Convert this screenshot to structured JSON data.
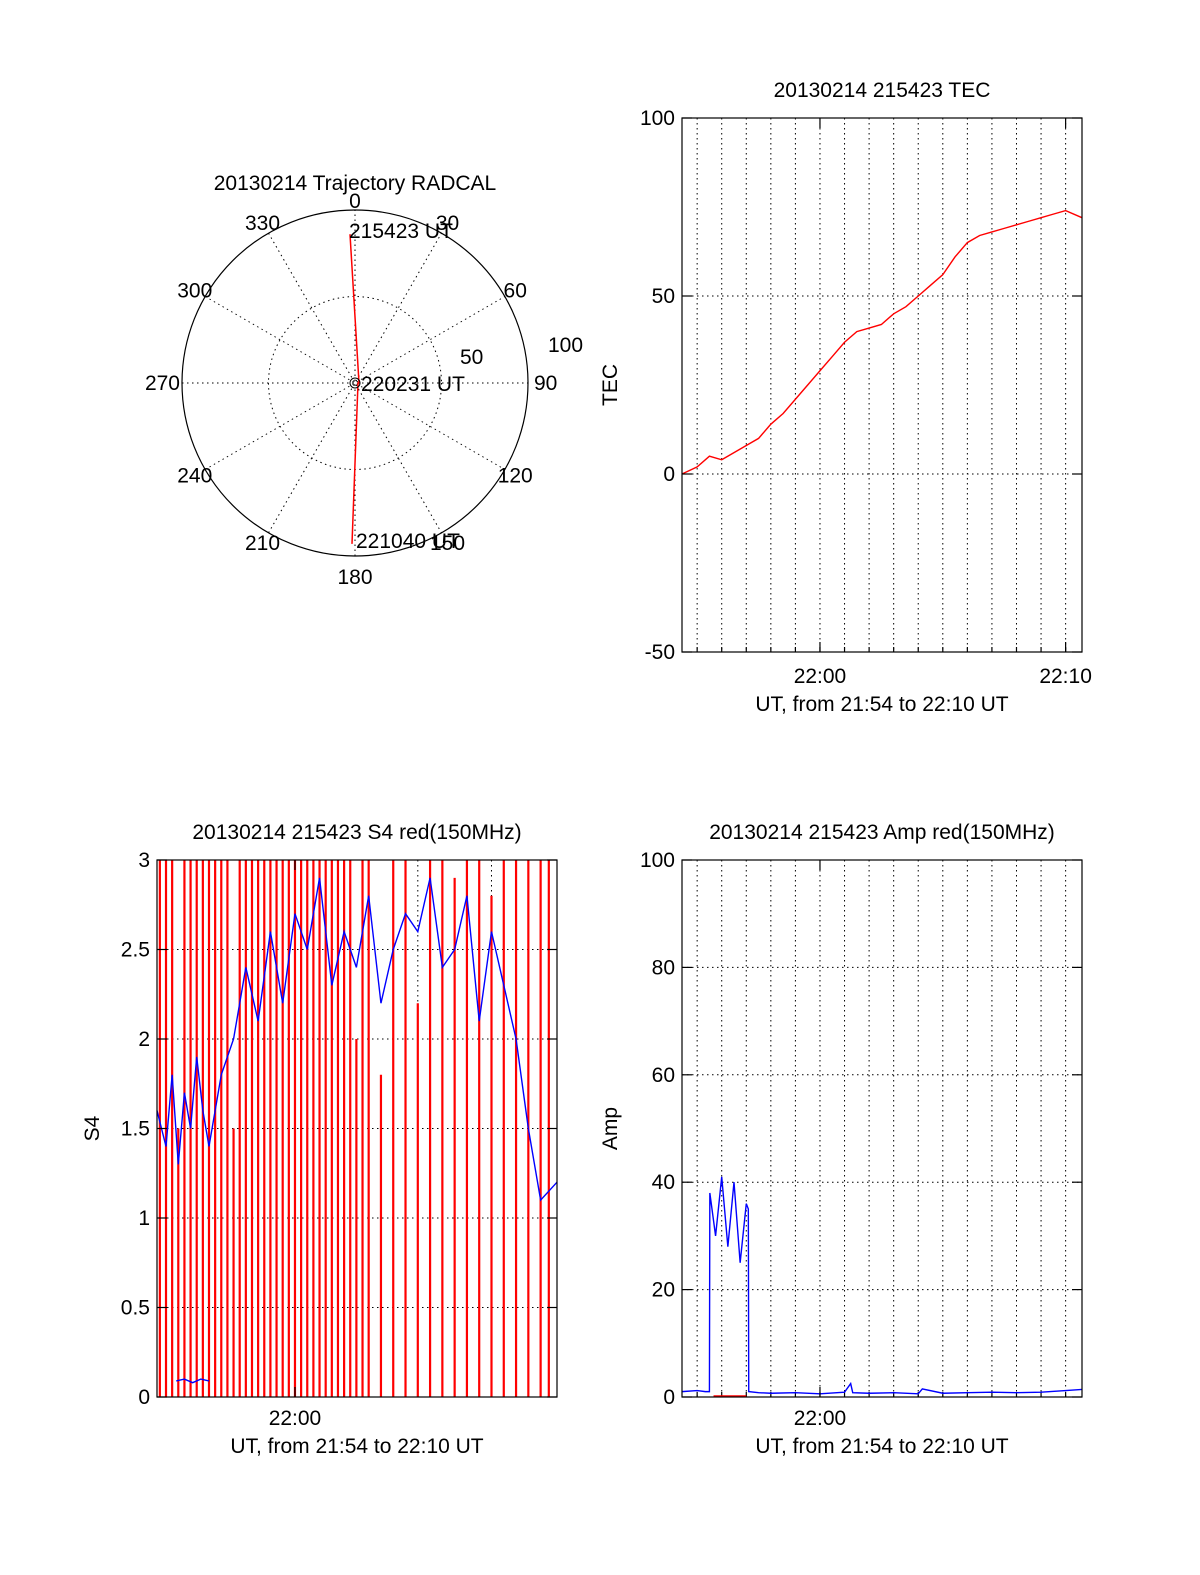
{
  "colors": {
    "red": "#ff0000",
    "blue": "#0000ff",
    "axis": "#000000",
    "background": "#ffffff"
  },
  "chart_data": [
    {
      "id": "trajectory",
      "type": "scatter",
      "projection": "polar",
      "title": "20130214 Trajectory RADCAL",
      "azimuth_labels": [
        {
          "az": 0,
          "label": "0"
        },
        {
          "az": 30,
          "label": "30"
        },
        {
          "az": 60,
          "label": "60"
        },
        {
          "az": 90,
          "label": "90"
        },
        {
          "az": 120,
          "label": "120"
        },
        {
          "az": 150,
          "label": "150"
        },
        {
          "az": 180,
          "label": "180"
        },
        {
          "az": 210,
          "label": "210"
        },
        {
          "az": 240,
          "label": "240"
        },
        {
          "az": 270,
          "label": "270"
        },
        {
          "az": 300,
          "label": "300"
        },
        {
          "az": 330,
          "label": "330"
        }
      ],
      "radial_labels": [
        "50",
        "100"
      ],
      "radial_range": [
        0,
        100
      ],
      "zenith_ring": 50,
      "grid": true,
      "track_color": "red",
      "track": {
        "az": [
          0,
          0,
          180,
          180
        ],
        "r": [
          86,
          0,
          0,
          93
        ]
      },
      "annotations": [
        {
          "text": "215423 UT",
          "az": 0,
          "r": 86
        },
        {
          "text": "220231 UT",
          "az": 0,
          "r": 0
        },
        {
          "text": "221040 UT",
          "az": 180,
          "r": 93
        }
      ]
    },
    {
      "id": "tec",
      "type": "line",
      "title": "20130214 215423 TEC",
      "ylabel": "TEC",
      "xlabel": "UT, from 21:54 to 22:10 UT",
      "xlim": [
        "21:54:23",
        "22:10:40"
      ],
      "ylim": [
        -50,
        100
      ],
      "yticks": [
        "-50",
        "0",
        "50",
        "100"
      ],
      "xticks": [
        {
          "t": "22:00",
          "label": "22:00"
        },
        {
          "t": "22:10",
          "label": "22:10"
        }
      ],
      "minor_grid_x_minutes": 1,
      "grid_y": [
        50,
        0
      ],
      "series": [
        {
          "color": "red",
          "x": [
            "21:54:23",
            "21:55:00",
            "21:55:30",
            "21:56:00",
            "21:56:30",
            "21:57:00",
            "21:57:30",
            "21:58:00",
            "21:58:30",
            "21:59:00",
            "21:59:30",
            "22:00:00",
            "22:00:30",
            "22:01:00",
            "22:01:30",
            "22:02:00",
            "22:02:30",
            "22:03:00",
            "22:03:30",
            "22:04:00",
            "22:04:30",
            "22:05:00",
            "22:05:30",
            "22:06:00",
            "22:06:30",
            "22:07:00",
            "22:07:30",
            "22:08:00",
            "22:08:30",
            "22:09:00",
            "22:09:30",
            "22:10:00",
            "22:10:40"
          ],
          "y": [
            0,
            2,
            5,
            4,
            6,
            8,
            10,
            14,
            17,
            21,
            25,
            29,
            33,
            37,
            40,
            41,
            42,
            45,
            47,
            50,
            53,
            56,
            61,
            65,
            67,
            68,
            69,
            70,
            71,
            72,
            73,
            74,
            72
          ]
        }
      ]
    },
    {
      "id": "s4",
      "type": "line",
      "title": "20130214 215423 S4 red(150MHz)",
      "ylabel": "S4",
      "xlabel": "UT, from 21:54 to 22:10 UT",
      "xlim": [
        "21:54:23",
        "22:10:40"
      ],
      "ylim": [
        0,
        3
      ],
      "yticks": [
        "0",
        "0.5",
        "1",
        "1.5",
        "2",
        "2.5",
        "3"
      ],
      "xticks": [
        {
          "t": "22:00",
          "label": "22:00"
        }
      ],
      "grid_y": [
        0.5,
        1,
        1.5,
        2,
        2.5
      ],
      "minor_grid_x_minutes": 1,
      "series": [
        {
          "color": "red",
          "style": "spikes",
          "x": [
            "21:54:30",
            "21:54:45",
            "21:55:00",
            "21:55:15",
            "21:55:30",
            "21:55:45",
            "21:56:00",
            "21:56:15",
            "21:56:30",
            "21:56:45",
            "21:57:00",
            "21:57:15",
            "21:57:30",
            "21:57:45",
            "21:58:00",
            "21:58:15",
            "21:58:30",
            "21:58:45",
            "21:59:00",
            "21:59:15",
            "21:59:30",
            "21:59:45",
            "22:00:00",
            "22:00:15",
            "22:00:30",
            "22:00:45",
            "22:01:00",
            "22:01:15",
            "22:01:30",
            "22:01:45",
            "22:02:00",
            "22:02:15",
            "22:02:30",
            "22:02:45",
            "22:03:00",
            "22:03:30",
            "22:04:00",
            "22:04:30",
            "22:05:00",
            "22:05:30",
            "22:06:00",
            "22:06:30",
            "22:07:00",
            "22:07:30",
            "22:08:00",
            "22:08:30",
            "22:09:00",
            "22:09:30",
            "22:10:00",
            "22:10:20"
          ],
          "y": [
            3,
            3,
            3,
            1.5,
            3,
            3,
            3,
            3,
            3,
            3,
            3,
            3,
            1.5,
            3,
            3,
            3,
            3,
            3,
            3,
            3,
            3,
            3,
            3,
            3,
            3,
            3,
            3,
            3,
            3,
            3,
            3,
            3,
            2,
            3,
            3,
            1.8,
            3,
            3,
            2.2,
            3,
            3,
            2.9,
            3,
            3,
            2.8,
            3,
            3,
            3,
            3,
            3
          ]
        },
        {
          "color": "blue",
          "x": [
            "21:54:23",
            "21:54:45",
            "21:55:00",
            "21:55:15",
            "21:55:30",
            "21:55:45",
            "21:56:00",
            "21:56:15",
            "21:56:30",
            "21:57:00",
            "21:57:30",
            "21:58:00",
            "21:58:30",
            "21:59:00",
            "21:59:30",
            "22:00:00",
            "22:00:30",
            "22:01:00",
            "22:01:30",
            "22:02:00",
            "22:02:30",
            "22:03:00",
            "22:03:30",
            "22:04:00",
            "22:04:30",
            "22:05:00",
            "22:05:30",
            "22:06:00",
            "22:06:30",
            "22:07:00",
            "22:07:30",
            "22:08:00",
            "22:08:30",
            "22:09:00",
            "22:09:30",
            "22:10:00",
            "22:10:40"
          ],
          "y": [
            1.6,
            1.4,
            1.8,
            1.3,
            1.7,
            1.5,
            1.9,
            1.6,
            1.4,
            1.8,
            2.0,
            2.4,
            2.1,
            2.6,
            2.2,
            2.7,
            2.5,
            2.9,
            2.3,
            2.6,
            2.4,
            2.8,
            2.2,
            2.5,
            2.7,
            2.6,
            2.9,
            2.4,
            2.5,
            2.8,
            2.1,
            2.6,
            2.3,
            2.0,
            1.5,
            1.1,
            1.2
          ]
        },
        {
          "color": "blue",
          "x": [
            "21:55:10",
            "21:55:30",
            "21:55:50",
            "21:56:10",
            "21:56:30"
          ],
          "y": [
            0.09,
            0.1,
            0.08,
            0.1,
            0.09
          ]
        }
      ]
    },
    {
      "id": "amp",
      "type": "line",
      "title": "20130214 215423 Amp red(150MHz)",
      "ylabel": "Amp",
      "xlabel": "UT, from 21:54 to 22:10 UT",
      "xlim": [
        "21:54:23",
        "22:10:40"
      ],
      "ylim": [
        0,
        100
      ],
      "yticks": [
        "0",
        "20",
        "40",
        "60",
        "80",
        "100"
      ],
      "xticks": [
        {
          "t": "22:00",
          "label": "22:00"
        }
      ],
      "grid_y": [
        20,
        40,
        60,
        80
      ],
      "minor_grid_x_minutes": 1,
      "series": [
        {
          "color": "blue",
          "x": [
            "21:54:23",
            "21:55:00",
            "21:55:20",
            "21:55:30",
            "21:55:31",
            "21:55:45",
            "21:56:00",
            "21:56:15",
            "21:56:30",
            "21:56:45",
            "21:57:00",
            "21:57:05",
            "21:57:06",
            "21:57:30",
            "21:58:00",
            "21:59:00",
            "22:00:00",
            "22:01:00",
            "22:01:15",
            "22:01:20",
            "22:02:00",
            "22:03:00",
            "22:04:00",
            "22:04:10",
            "22:05:00",
            "22:06:00",
            "22:07:00",
            "22:08:00",
            "22:09:00",
            "22:10:00",
            "22:10:40"
          ],
          "y": [
            1,
            1.2,
            1,
            1,
            38,
            30,
            41,
            28,
            40,
            25,
            36,
            35,
            1,
            0.8,
            0.7,
            0.8,
            0.6,
            0.9,
            2.5,
            0.8,
            0.7,
            0.8,
            0.6,
            1.5,
            0.7,
            0.8,
            0.9,
            0.8,
            0.9,
            1.2,
            1.4
          ]
        },
        {
          "color": "red",
          "x": [
            "21:55:40",
            "21:56:00",
            "21:56:20",
            "21:56:40",
            "21:57:00"
          ],
          "y": [
            0.2,
            0.2,
            0.2,
            0.2,
            0.2
          ]
        }
      ]
    }
  ]
}
